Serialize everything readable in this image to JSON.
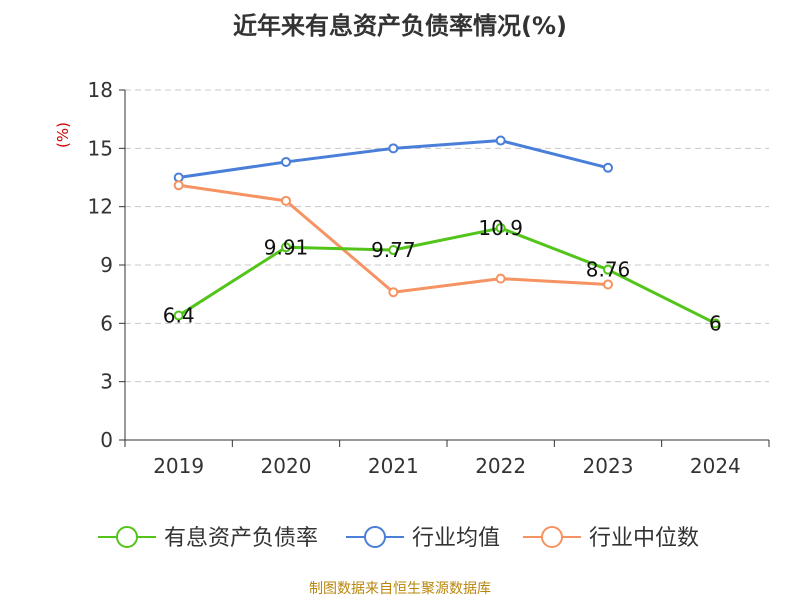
{
  "chart_data": {
    "type": "line",
    "title": "近年来有息资产负债率情况(%)",
    "ylabel": "(%)",
    "xlabel": "",
    "categories": [
      "2019",
      "2020",
      "2021",
      "2022",
      "2023",
      "2024"
    ],
    "ylim": [
      0,
      18
    ],
    "yticks": [
      0,
      3,
      6,
      9,
      12,
      15,
      18
    ],
    "grid": true,
    "legend_position": "bottom",
    "series": [
      {
        "name": "有息资产负债率",
        "color": "#52c41a",
        "values": [
          6.4,
          9.91,
          9.77,
          10.9,
          8.76,
          6
        ],
        "labels": [
          "6.4",
          "9.91",
          "9.77",
          "10.9",
          "8.76",
          "6"
        ]
      },
      {
        "name": "行业均值",
        "color": "#4a7fd9",
        "values": [
          13.5,
          14.3,
          15.0,
          15.4,
          14.0,
          null
        ]
      },
      {
        "name": "行业中位数",
        "color": "#f59362",
        "values": [
          13.1,
          12.3,
          7.6,
          8.3,
          8.0,
          null
        ]
      }
    ]
  },
  "source": "制图数据来自恒生聚源数据库"
}
